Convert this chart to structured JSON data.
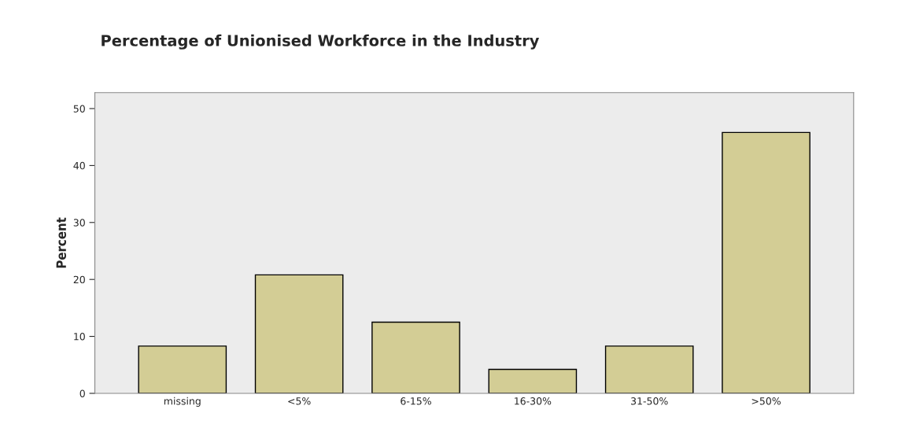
{
  "chart_data": {
    "type": "bar",
    "title": "Percentage of Unionised Workforce in the Industry",
    "ylabel": "Percent",
    "categories": [
      "missing",
      "<5%",
      "6-15%",
      "16-30%",
      "31-50%",
      ">50%"
    ],
    "values": [
      8.3,
      20.8,
      12.5,
      4.2,
      8.3,
      45.8
    ],
    "color": "#d3cd95",
    "ylim": [
      0,
      52.8
    ],
    "yticks": [
      0,
      10,
      20,
      30,
      40,
      50
    ],
    "grid": false,
    "legend": false
  }
}
